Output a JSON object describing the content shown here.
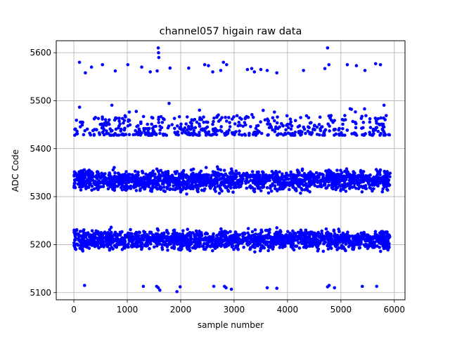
{
  "chart_data": {
    "type": "scatter",
    "title": "channel057 higain raw data",
    "xlabel": "sample number",
    "ylabel": "ADC Code",
    "xlim": [
      -330,
      6200
    ],
    "ylim": [
      5085,
      5625
    ],
    "xticks": [
      0,
      1000,
      2000,
      3000,
      4000,
      5000,
      6000
    ],
    "xtick_labels": [
      "0",
      "1000",
      "2000",
      "3000",
      "4000",
      "5000",
      "6000"
    ],
    "yticks": [
      5100,
      5200,
      5300,
      5400,
      5500,
      5600
    ],
    "ytick_labels": [
      "5100",
      "5200",
      "5300",
      "5400",
      "5500",
      "5600"
    ],
    "grid": true,
    "marker_color": "#0000ff",
    "series": [
      {
        "name": "",
        "bands": [
          {
            "center": 5213,
            "low": 5180,
            "high": 5240,
            "x_range": [
              0,
              5920
            ],
            "density": "dense"
          },
          {
            "center": 5335,
            "low": 5300,
            "high": 5368,
            "x_range": [
              0,
              5920
            ],
            "density": "dense"
          },
          {
            "center": 5452,
            "low": 5428,
            "high": 5497,
            "x_range": [
              0,
              5920
            ],
            "density": "medium"
          }
        ],
        "outliers": [
          [
            105,
            5580
          ],
          [
            215,
            5558
          ],
          [
            330,
            5570
          ],
          [
            535,
            5575
          ],
          [
            775,
            5562
          ],
          [
            1010,
            5575
          ],
          [
            1270,
            5570
          ],
          [
            1430,
            5560
          ],
          [
            1560,
            5562
          ],
          [
            1580,
            5610
          ],
          [
            1585,
            5600
          ],
          [
            1590,
            5590
          ],
          [
            1800,
            5568
          ],
          [
            2150,
            5568
          ],
          [
            2450,
            5575
          ],
          [
            2520,
            5573
          ],
          [
            2600,
            5560
          ],
          [
            2750,
            5563
          ],
          [
            2800,
            5580
          ],
          [
            2860,
            5575
          ],
          [
            3250,
            5565
          ],
          [
            3330,
            5567
          ],
          [
            3380,
            5560
          ],
          [
            3500,
            5565
          ],
          [
            3620,
            5563
          ],
          [
            3800,
            5558
          ],
          [
            4300,
            5563
          ],
          [
            4700,
            5567
          ],
          [
            4750,
            5610
          ],
          [
            4775,
            5575
          ],
          [
            5120,
            5575
          ],
          [
            5290,
            5573
          ],
          [
            5450,
            5563
          ],
          [
            5650,
            5577
          ],
          [
            5740,
            5575
          ],
          [
            200,
            5115
          ],
          [
            1300,
            5113
          ],
          [
            1550,
            5113
          ],
          [
            1580,
            5110
          ],
          [
            1610,
            5105
          ],
          [
            1930,
            5102
          ],
          [
            1990,
            5112
          ],
          [
            2620,
            5113
          ],
          [
            2820,
            5113
          ],
          [
            2850,
            5110
          ],
          [
            2950,
            5107
          ],
          [
            3620,
            5110
          ],
          [
            3800,
            5109
          ],
          [
            4750,
            5112
          ],
          [
            4780,
            5115
          ],
          [
            4880,
            5110
          ],
          [
            5400,
            5113
          ],
          [
            5670,
            5113
          ]
        ]
      }
    ]
  }
}
